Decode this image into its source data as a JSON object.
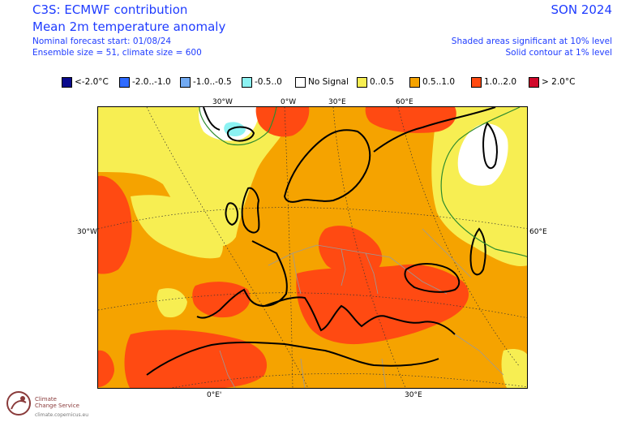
{
  "header": {
    "title": "C3S: ECMWF contribution",
    "subtitle": "Mean 2m temperature anomaly",
    "forecast_start": "Nominal forecast start: 01/08/24",
    "ensemble": "Ensemble size = 51, climate size = 600",
    "season": "SON 2024",
    "sig_shaded": "Shaded areas significant at 10% level",
    "sig_contour": "Solid contour at 1% level"
  },
  "legend": [
    {
      "label": "<-2.0°C",
      "color": "#0a0a8c"
    },
    {
      "label": "-2.0..-1.0",
      "color": "#2f6bff"
    },
    {
      "label": "-1.0..-0.5",
      "color": "#72aaf2"
    },
    {
      "label": "-0.5..0",
      "color": "#8cf2f2"
    },
    {
      "label": "No Signal",
      "color": "#ffffff"
    },
    {
      "label": "0..0.5",
      "color": "#f7ee52"
    },
    {
      "label": "0.5..1.0",
      "color": "#f5a300"
    },
    {
      "label": "1.0..2.0",
      "color": "#ff4a12"
    },
    {
      "label": "> 2.0°C",
      "color": "#d0082a"
    }
  ],
  "grid_labels": {
    "top_30w": "30°W",
    "top_0w": "0°W",
    "top_30e": "30°E",
    "top_60e": "60°E",
    "left_30w": "30°W",
    "right_60e": "60°E",
    "bottom_0e": "0°E'",
    "bottom_30e": "30°E"
  },
  "logo": {
    "name_line1": "Climate",
    "name_line2": "Change Service",
    "url": "climate.copernicus.eu"
  },
  "colors": {
    "text_blue": "#1f3cff",
    "no_signal": "#ffffff",
    "warm_0_05": "#f7ee52",
    "warm_05_1": "#f5a300",
    "warm_1_2": "#ff4a12",
    "cool_05_0": "#8cf2f2",
    "contour_1pct": "#2e8b2e"
  }
}
